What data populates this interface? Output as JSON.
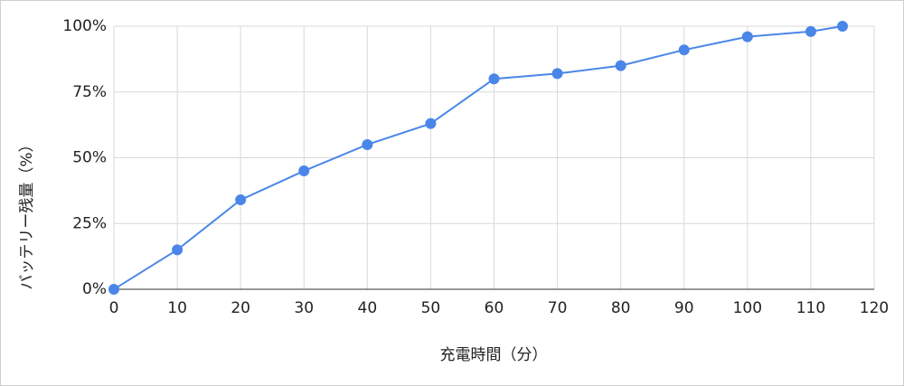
{
  "chart_data": {
    "type": "line",
    "x_label": "充電時間（分）",
    "y_label": "バッテリー残量（%）",
    "x": [
      0,
      10,
      20,
      30,
      40,
      50,
      60,
      70,
      80,
      90,
      100,
      110,
      115
    ],
    "series": [
      {
        "color": "#4a86e8",
        "values": [
          0,
          15,
          34,
          45,
          55,
          63,
          80,
          82,
          85,
          91,
          96,
          98,
          100
        ]
      }
    ],
    "xlim": [
      0,
      120
    ],
    "xticks": [
      0,
      10,
      20,
      30,
      40,
      50,
      60,
      70,
      80,
      90,
      100,
      110,
      120
    ],
    "ylim": [
      0,
      100
    ],
    "yticks": [
      {
        "value": 0,
        "label": "0%"
      },
      {
        "value": 25,
        "label": "25%"
      },
      {
        "value": 50,
        "label": "50%"
      },
      {
        "value": 75,
        "label": "75%"
      },
      {
        "value": 100,
        "label": "100%"
      }
    ],
    "grid": true
  }
}
